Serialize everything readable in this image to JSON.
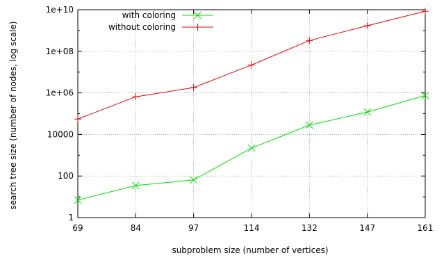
{
  "chart_data": {
    "type": "line",
    "title": "",
    "xlabel": "subproblem size (number of vertices)",
    "ylabel": "search tree size (number of nodes, log scale)",
    "categories": [
      "69",
      "84",
      "97",
      "114",
      "132",
      "147",
      "161"
    ],
    "y_scale": "log",
    "ylim": [
      1,
      10000000000
    ],
    "y_ticks": [
      1,
      100,
      10000,
      1000000,
      100000000,
      10000000000
    ],
    "y_tick_labels": [
      "1",
      "100",
      "10000",
      "1e+06",
      "1e+08",
      "1e+10"
    ],
    "grid": true,
    "legend_position": "top-left",
    "series": [
      {
        "name": "with coloring",
        "color": "#00dd00",
        "marker": "x",
        "values": [
          7,
          35,
          65,
          2200,
          28000,
          120000,
          750000
        ]
      },
      {
        "name": "without coloring",
        "color": "#e00000",
        "marker": "plus",
        "values": [
          55000,
          650000,
          1800000,
          22000000,
          330000000,
          1700000000,
          8500000000
        ]
      }
    ]
  }
}
